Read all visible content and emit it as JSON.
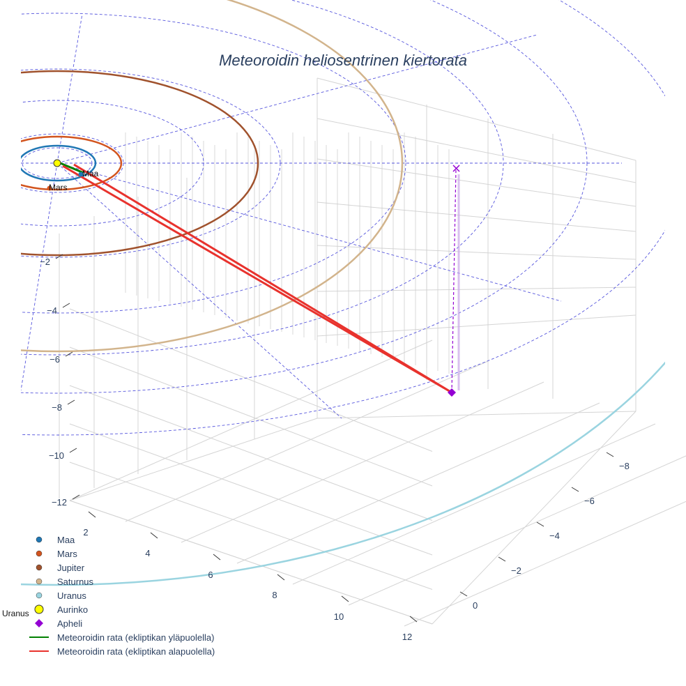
{
  "chart_data": {
    "type": "line",
    "title": "Meteoroidin heliosentrinen kiertorata",
    "colors": {
      "maa": "#1f77b4",
      "mars": "#d2541e",
      "jupiter": "#a0522d",
      "saturnus": "#d2b48c",
      "uranus": "#9ad4e0",
      "aurinko": "#ffff00",
      "apheli": "#9400d3",
      "above": "#008000",
      "below": "#e8322d",
      "grid_guides": "#5555dd"
    },
    "axes": {
      "z_ticks": [
        "−2",
        "−4",
        "−6",
        "−8",
        "−10",
        "−12"
      ],
      "x_ticks": [
        "2",
        "4",
        "6",
        "8",
        "10",
        "12"
      ],
      "y_ticks": [
        "0",
        "−2",
        "−4",
        "−6",
        "−8"
      ]
    },
    "point_labels": {
      "maa": "Maa",
      "mars": "Mars",
      "uranus": "Uranus"
    },
    "legend": [
      {
        "name": "Maa",
        "symbol": "dot",
        "color": "#1f77b4"
      },
      {
        "name": "Mars",
        "symbol": "dot",
        "color": "#d2541e"
      },
      {
        "name": "Jupiter",
        "symbol": "dot",
        "color": "#a0522d"
      },
      {
        "name": "Saturnus",
        "symbol": "dot",
        "color": "#d2b48c"
      },
      {
        "name": "Uranus",
        "symbol": "dot",
        "color": "#9ad4e0"
      },
      {
        "name": "Aurinko",
        "symbol": "bigdot",
        "color": "#ffff00"
      },
      {
        "name": "Apheli",
        "symbol": "diamond",
        "color": "#9400d3"
      },
      {
        "name": "Meteoroidin rata (ekliptikan yläpuolella)",
        "symbol": "line",
        "color": "#008000"
      },
      {
        "name": "Meteoroidin rata (ekliptikan alapuolella)",
        "symbol": "line",
        "color": "#e8322d"
      }
    ],
    "legend_placement": "bottom-left",
    "grid": true
  }
}
